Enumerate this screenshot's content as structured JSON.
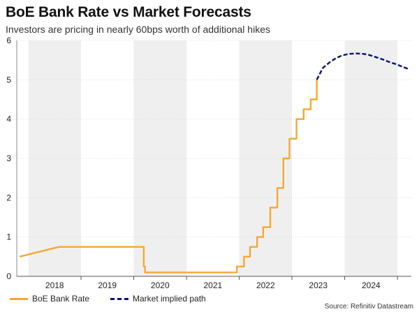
{
  "chart_data": {
    "type": "line",
    "title": "BoE Bank Rate vs Market Forecasts",
    "subtitle": "Investors are pricing in nearly 60bps worth of additional hikes",
    "ylim": [
      0,
      6
    ],
    "y_ticks": [
      0,
      1,
      2,
      3,
      4,
      5,
      6
    ],
    "x_tick_labels": [
      "2018",
      "2019",
      "2020",
      "2021",
      "2022",
      "2023",
      "2024"
    ],
    "grid": "horizontal",
    "shaded_bands": "alternate years",
    "legend_position": "bottom-left",
    "source": "Source: Refinitiv Datastream",
    "colors": {
      "bank_rate": "#f7a733",
      "market_path": "#0a1172",
      "band": "#efefef"
    },
    "series": [
      {
        "name": "BoE Bank Rate",
        "style": "solid",
        "points": [
          [
            "2017-11-02",
            0.5
          ],
          [
            "2018-08-02",
            0.75
          ],
          [
            "2020-03-11",
            0.75
          ],
          [
            "2020-03-11",
            0.25
          ],
          [
            "2020-03-19",
            0.25
          ],
          [
            "2020-03-19",
            0.1
          ],
          [
            "2021-12-16",
            0.1
          ],
          [
            "2021-12-16",
            0.25
          ],
          [
            "2022-02-03",
            0.25
          ],
          [
            "2022-02-03",
            0.5
          ],
          [
            "2022-03-17",
            0.5
          ],
          [
            "2022-03-17",
            0.75
          ],
          [
            "2022-05-05",
            0.75
          ],
          [
            "2022-05-05",
            1.0
          ],
          [
            "2022-06-16",
            1.0
          ],
          [
            "2022-06-16",
            1.25
          ],
          [
            "2022-08-04",
            1.25
          ],
          [
            "2022-08-04",
            1.75
          ],
          [
            "2022-09-22",
            1.75
          ],
          [
            "2022-09-22",
            2.25
          ],
          [
            "2022-11-03",
            2.25
          ],
          [
            "2022-11-03",
            3.0
          ],
          [
            "2022-12-15",
            3.0
          ],
          [
            "2022-12-15",
            3.5
          ],
          [
            "2023-02-02",
            3.5
          ],
          [
            "2023-02-02",
            4.0
          ],
          [
            "2023-03-23",
            4.0
          ],
          [
            "2023-03-23",
            4.25
          ],
          [
            "2023-05-11",
            4.25
          ],
          [
            "2023-05-11",
            4.5
          ],
          [
            "2023-06-22",
            4.5
          ],
          [
            "2023-06-22",
            5.0
          ]
        ]
      },
      {
        "name": "Market implied path",
        "style": "dashed",
        "points": [
          [
            "2023-06-22",
            5.0
          ],
          [
            "2023-08-03",
            5.3
          ],
          [
            "2023-09-21",
            5.45
          ],
          [
            "2023-11-02",
            5.55
          ],
          [
            "2023-12-14",
            5.62
          ],
          [
            "2024-02-01",
            5.66
          ],
          [
            "2024-03-21",
            5.67
          ],
          [
            "2024-05-09",
            5.66
          ],
          [
            "2024-06-20",
            5.63
          ],
          [
            "2024-08-01",
            5.58
          ],
          [
            "2024-09-19",
            5.52
          ],
          [
            "2024-11-07",
            5.45
          ],
          [
            "2024-12-19",
            5.4
          ],
          [
            "2025-02-06",
            5.33
          ],
          [
            "2025-03-20",
            5.27
          ]
        ]
      }
    ]
  }
}
